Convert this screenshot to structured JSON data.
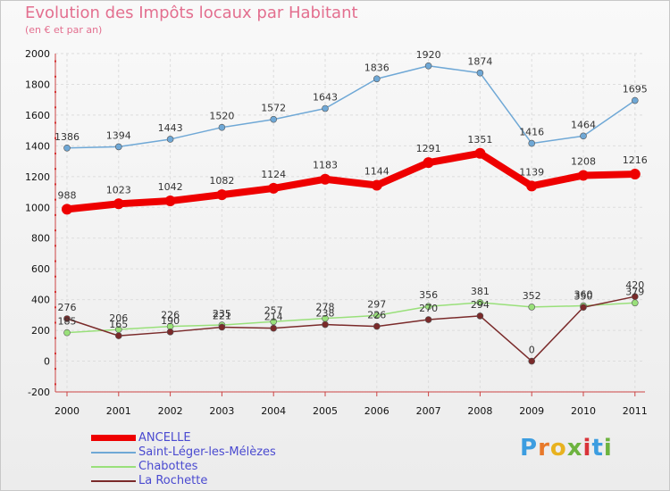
{
  "title": "Evolution des Impôts locaux par Habitant",
  "subtitle": "(en € et par an)",
  "logo": {
    "text": "Proxiti",
    "colors": [
      "#3c9de0",
      "#e8792a",
      "#e8b21f",
      "#6db33f",
      "#d9343a",
      "#3c9de0",
      "#6db33f"
    ]
  },
  "chart_data": {
    "type": "line",
    "title": "Evolution des Impôts locaux par Habitant",
    "subtitle": "(en € et par an)",
    "xlabel": "",
    "ylabel": "",
    "ylim": [
      -200,
      2000
    ],
    "yticks": [
      -200,
      0,
      200,
      400,
      600,
      800,
      1000,
      1200,
      1400,
      1600,
      1800,
      2000
    ],
    "categories": [
      "2000",
      "2001",
      "2002",
      "2003",
      "2004",
      "2005",
      "2006",
      "2007",
      "2008",
      "2009",
      "2010",
      "2011"
    ],
    "legend_position": "bottom-left",
    "series": [
      {
        "name": "Saint-Léger-les-Mélèzes",
        "color": "#6fa8d6",
        "values": [
          1386,
          1394,
          1443,
          1520,
          1572,
          1643,
          1836,
          1920,
          1874,
          1416,
          1464,
          1695
        ],
        "labels": [
          "1386",
          "1394",
          "1443",
          "1520",
          "1572",
          "1643",
          "1836",
          "1920",
          "1874",
          "1416",
          "1464",
          "1695"
        ]
      },
      {
        "name": "Chabottes",
        "color": "#99e07a",
        "values": [
          185,
          206,
          226,
          235,
          257,
          278,
          297,
          356,
          381,
          352,
          360,
          379
        ],
        "labels": [
          "185",
          "206",
          "226",
          "235",
          "257",
          "278",
          "297",
          "356",
          "381",
          "352",
          "360",
          "379"
        ]
      },
      {
        "name": "La Rochette",
        "color": "#7a2a2a",
        "values": [
          276,
          165,
          190,
          221,
          214,
          238,
          226,
          270,
          294,
          0,
          350,
          420
        ],
        "labels": [
          "276",
          "165",
          "190",
          "221",
          "214",
          "238",
          "226",
          "270",
          "294",
          "0",
          "350",
          "420"
        ]
      },
      {
        "name": "ANCELLE",
        "color": "#ee0000",
        "values": [
          988,
          1023,
          1042,
          1082,
          1124,
          1183,
          1144,
          1291,
          1351,
          1139,
          1208,
          1216
        ],
        "labels": [
          "988",
          "1023",
          "1042",
          "1082",
          "1124",
          "1183",
          "1144",
          "1291",
          "1351",
          "1139",
          "1208",
          "1216"
        ]
      }
    ],
    "legend": [
      {
        "name": "ANCELLE",
        "color": "#ee0000",
        "thick": true
      },
      {
        "name": "Saint-Léger-les-Mélèzes",
        "color": "#6fa8d6",
        "thick": false
      },
      {
        "name": "Chabottes",
        "color": "#99e07a",
        "thick": false
      },
      {
        "name": "La Rochette",
        "color": "#7a2a2a",
        "thick": false
      }
    ]
  }
}
